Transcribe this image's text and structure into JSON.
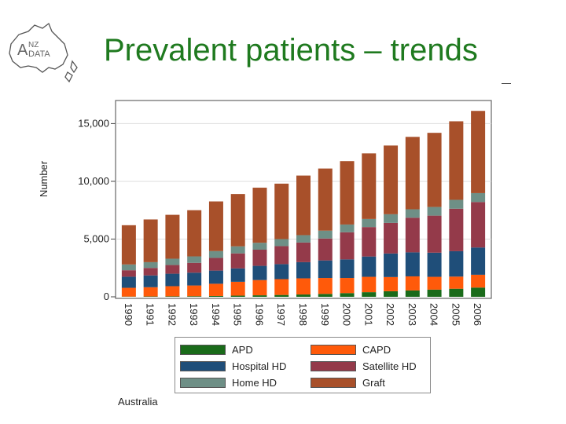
{
  "slide": {
    "title": "Prevalent patients – trends",
    "logo_text": "ANZDATA",
    "logo_letters": {
      "a1": "A",
      "nz": "NZ",
      "data": "DATA"
    },
    "footer_label": "Australia"
  },
  "chart_data": {
    "type": "bar",
    "stacked": true,
    "title": "",
    "xlabel": "",
    "ylabel": "Number",
    "ylim": [
      0,
      17000
    ],
    "yticks": [
      0,
      5000,
      10000,
      15000
    ],
    "ytick_labels": [
      "0",
      "5,000",
      "10,000",
      "15,000"
    ],
    "grid": true,
    "legend_position": "bottom",
    "categories": [
      "1990",
      "1991",
      "1992",
      "1993",
      "1994",
      "1995",
      "1996",
      "1997",
      "1998",
      "1999",
      "2000",
      "2001",
      "2002",
      "2003",
      "2004",
      "2005",
      "2006"
    ],
    "series": [
      {
        "name": "APD",
        "color": "#1a6b1a",
        "values": [
          20,
          30,
          40,
          50,
          70,
          100,
          130,
          160,
          200,
          250,
          320,
          400,
          480,
          550,
          620,
          700,
          800
        ]
      },
      {
        "name": "CAPD",
        "color": "#ff5a0a",
        "values": [
          760,
          800,
          880,
          930,
          1060,
          1200,
          1320,
          1370,
          1400,
          1380,
          1310,
          1330,
          1230,
          1220,
          1110,
          1050,
          1110
        ]
      },
      {
        "name": "Hospital HD",
        "color": "#1f4e79",
        "values": [
          960,
          1020,
          1080,
          1110,
          1140,
          1160,
          1230,
          1300,
          1400,
          1520,
          1610,
          1760,
          2040,
          2080,
          2090,
          2200,
          2360
        ]
      },
      {
        "name": "Satellite HD",
        "color": "#943a4a",
        "values": [
          560,
          650,
          750,
          850,
          1100,
          1300,
          1400,
          1560,
          1700,
          1900,
          2350,
          2550,
          2650,
          3000,
          3210,
          3680,
          3940
        ]
      },
      {
        "name": "Home HD",
        "color": "#6e8f86",
        "values": [
          500,
          500,
          550,
          560,
          590,
          610,
          600,
          610,
          640,
          680,
          670,
          700,
          750,
          730,
          750,
          770,
          770
        ]
      },
      {
        "name": "Graft",
        "color": "#a8502a",
        "values": [
          3400,
          3700,
          3800,
          4000,
          4300,
          4530,
          4770,
          4800,
          5160,
          5380,
          5490,
          5680,
          5950,
          6270,
          6420,
          6800,
          7120
        ]
      }
    ]
  }
}
